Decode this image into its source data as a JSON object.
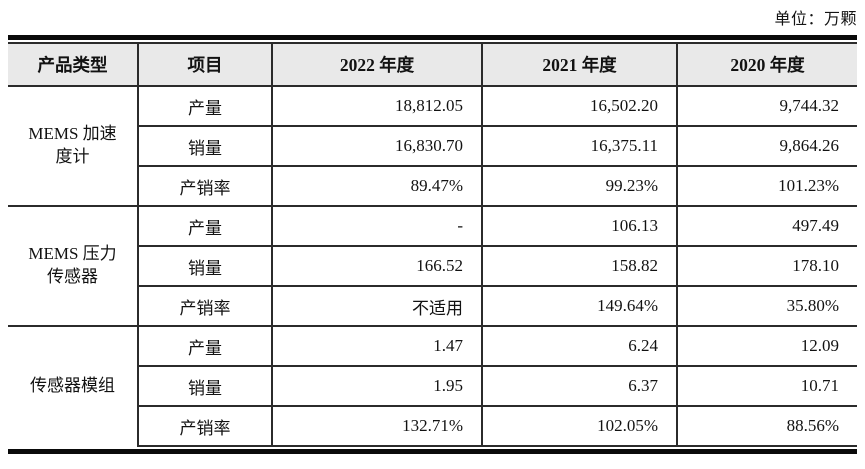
{
  "unit_label": "单位：万颗",
  "colors": {
    "header_bg": "#e9e9e9",
    "border": "#2b2b2b",
    "thick_rule": "#0a0a0a",
    "text": "#121212"
  },
  "table": {
    "headers": [
      "产品类型",
      "项目",
      "2022 年度",
      "2021 年度",
      "2020 年度"
    ],
    "groups": [
      {
        "product": "MEMS 加速度计",
        "rows": [
          {
            "item": "产量",
            "values": [
              "18,812.05",
              "16,502.20",
              "9,744.32"
            ]
          },
          {
            "item": "销量",
            "values": [
              "16,830.70",
              "16,375.11",
              "9,864.26"
            ]
          },
          {
            "item": "产销率",
            "values": [
              "89.47%",
              "99.23%",
              "101.23%"
            ]
          }
        ]
      },
      {
        "product": "MEMS 压力传感器",
        "rows": [
          {
            "item": "产量",
            "values": [
              "-",
              "106.13",
              "497.49"
            ]
          },
          {
            "item": "销量",
            "values": [
              "166.52",
              "158.82",
              "178.10"
            ]
          },
          {
            "item": "产销率",
            "values": [
              "不适用",
              "149.64%",
              "35.80%"
            ]
          }
        ]
      },
      {
        "product": "传感器模组",
        "rows": [
          {
            "item": "产量",
            "values": [
              "1.47",
              "6.24",
              "12.09"
            ]
          },
          {
            "item": "销量",
            "values": [
              "1.95",
              "6.37",
              "10.71"
            ]
          },
          {
            "item": "产销率",
            "values": [
              "132.71%",
              "102.05%",
              "88.56%"
            ]
          }
        ]
      }
    ]
  }
}
